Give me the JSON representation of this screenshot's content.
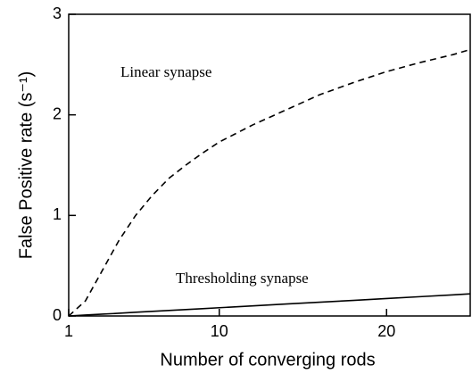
{
  "chart_data": {
    "type": "line",
    "x_label": "Number of converging rods",
    "y_label": "False Positive rate (s⁻¹)",
    "x": [
      1,
      2,
      3,
      4,
      5,
      6,
      7,
      8,
      9,
      10,
      12,
      14,
      16,
      18,
      20,
      22,
      24,
      25
    ],
    "series": [
      {
        "name": "Linear synapse",
        "color": "#000000",
        "dashed": true,
        "values": [
          0,
          0.15,
          0.45,
          0.75,
          1.0,
          1.2,
          1.37,
          1.5,
          1.62,
          1.73,
          1.9,
          2.05,
          2.2,
          2.32,
          2.43,
          2.52,
          2.6,
          2.65
        ]
      },
      {
        "name": "Thresholding synapse",
        "color": "#000000",
        "dashed": false,
        "values": [
          0,
          0.009,
          0.018,
          0.027,
          0.037,
          0.046,
          0.055,
          0.064,
          0.073,
          0.082,
          0.1,
          0.119,
          0.137,
          0.155,
          0.174,
          0.192,
          0.21,
          0.22
        ]
      }
    ],
    "xlim": [
      1,
      25
    ],
    "xticks": [
      1,
      10,
      20
    ],
    "ylim": [
      0,
      3
    ],
    "yticks": [
      0,
      1,
      2,
      3
    ]
  }
}
